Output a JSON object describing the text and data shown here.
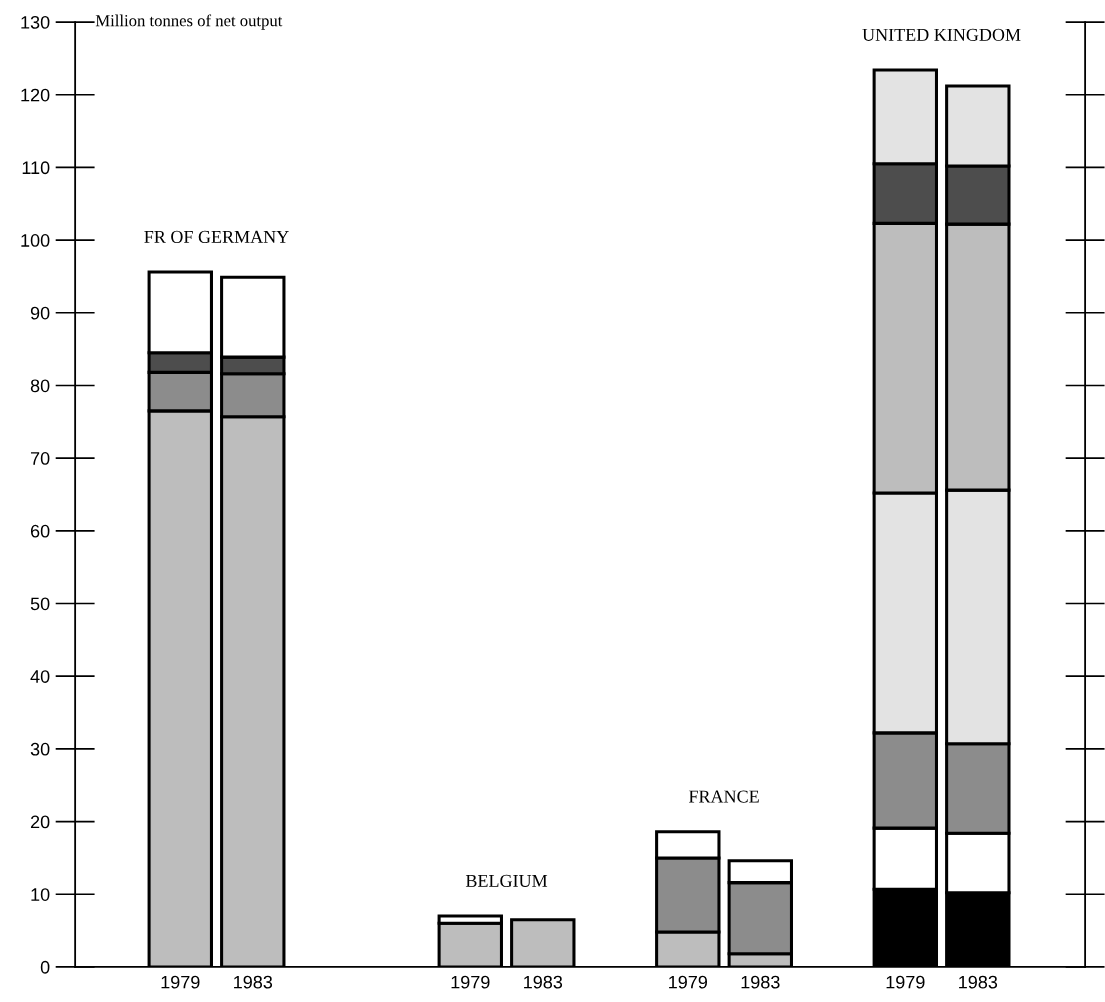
{
  "chart_data": {
    "type": "bar",
    "stacked": true,
    "ylabel": "Million tonnes of net output",
    "categories": [
      "1979",
      "1983",
      null,
      null,
      "1979",
      "1983",
      null,
      "1979",
      "1983",
      null,
      "1979",
      "1983"
    ],
    "series": [
      {
        "colors": [
          "#bdbdbd",
          "#bdbdbd",
          null,
          null,
          "#bdbdbd",
          "#bdbdbd",
          null,
          "#bdbdbd",
          "#bdbdbd",
          null,
          "#000000",
          "#000000"
        ],
        "values": [
          76.5,
          75.7,
          null,
          null,
          6.0,
          6.5,
          null,
          4.8,
          1.8,
          null,
          10.7,
          10.2
        ]
      },
      {
        "colors": [
          "#8c8c8c",
          "#8c8c8c",
          null,
          null,
          "#ffffff",
          null,
          null,
          "#8c8c8c",
          "#8c8c8c",
          null,
          "#ffffff",
          "#ffffff"
        ],
        "values": [
          5.3,
          5.9,
          null,
          null,
          1.0,
          null,
          null,
          10.2,
          9.8,
          null,
          8.4,
          8.2
        ]
      },
      {
        "colors": [
          "#4d4d4d",
          "#4d4d4d",
          null,
          null,
          null,
          null,
          null,
          "#ffffff",
          "#ffffff",
          null,
          "#8c8c8c",
          "#8c8c8c"
        ],
        "values": [
          2.7,
          2.3,
          null,
          null,
          null,
          null,
          null,
          3.6,
          3.0,
          null,
          13.1,
          12.3
        ]
      },
      {
        "colors": [
          "#ffffff",
          "#ffffff",
          null,
          null,
          null,
          null,
          null,
          null,
          null,
          null,
          "#e3e3e3",
          "#e3e3e3"
        ],
        "values": [
          11.1,
          11.0,
          null,
          null,
          null,
          null,
          null,
          null,
          null,
          null,
          33.0,
          34.9
        ]
      },
      {
        "colors": [
          null,
          null,
          null,
          null,
          null,
          null,
          null,
          null,
          null,
          null,
          "#bdbdbd",
          "#bdbdbd"
        ],
        "values": [
          null,
          null,
          null,
          null,
          null,
          null,
          null,
          null,
          null,
          null,
          37.1,
          36.6
        ]
      },
      {
        "colors": [
          null,
          null,
          null,
          null,
          null,
          null,
          null,
          null,
          null,
          null,
          "#4d4d4d",
          "#4d4d4d"
        ],
        "values": [
          null,
          null,
          null,
          null,
          null,
          null,
          null,
          null,
          null,
          null,
          8.2,
          8.0
        ]
      },
      {
        "colors": [
          null,
          null,
          null,
          null,
          null,
          null,
          null,
          null,
          null,
          null,
          "#e3e3e3",
          "#e3e3e3"
        ],
        "values": [
          null,
          null,
          null,
          null,
          null,
          null,
          null,
          null,
          null,
          null,
          12.9,
          11.0
        ]
      }
    ],
    "annotations": [
      "FR OF GERMANY",
      "BELGIUM",
      "FRANCE",
      "UNITED KINGDOM"
    ],
    "ylim": [
      0,
      130
    ],
    "yticks": [
      0,
      10,
      20,
      30,
      40,
      50,
      60,
      70,
      80,
      90,
      100,
      110,
      120,
      130
    ],
    "grid": false,
    "legend": false
  }
}
